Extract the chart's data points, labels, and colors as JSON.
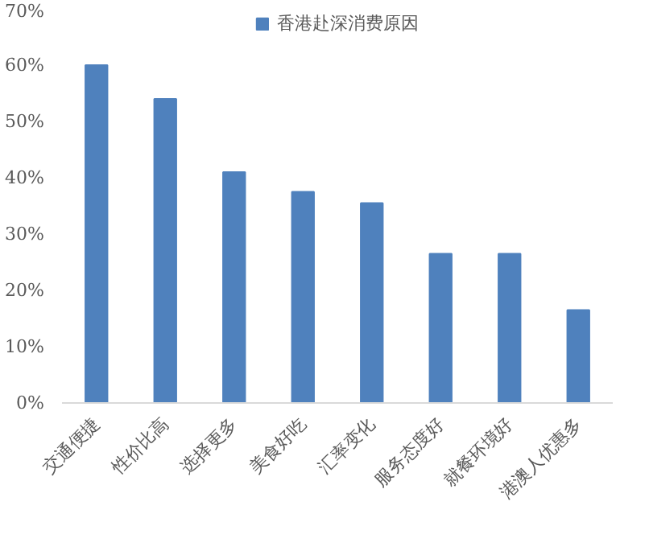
{
  "chart_data": {
    "type": "bar",
    "categories": [
      "交通便捷",
      "性价比高",
      "选择更多",
      "美食好吃",
      "汇率变化",
      "服务态度好",
      "就餐环境好",
      "港澳人优惠多"
    ],
    "series": [
      {
        "name": "香港赴深消费原因",
        "color": "#4f81bd",
        "values": [
          60,
          54,
          41,
          37.5,
          35.5,
          26.5,
          26.5,
          16.5
        ]
      }
    ],
    "ylim": [
      0,
      70
    ],
    "yticks": [
      {
        "value": 0,
        "label": "0%"
      },
      {
        "value": 10,
        "label": "10%"
      },
      {
        "value": 20,
        "label": "20%"
      },
      {
        "value": 30,
        "label": "30%"
      },
      {
        "value": 40,
        "label": "40%"
      },
      {
        "value": 50,
        "label": "50%"
      },
      {
        "value": 60,
        "label": "60%"
      },
      {
        "value": 70,
        "label": "70%"
      }
    ],
    "grid": false,
    "legend": "top"
  }
}
